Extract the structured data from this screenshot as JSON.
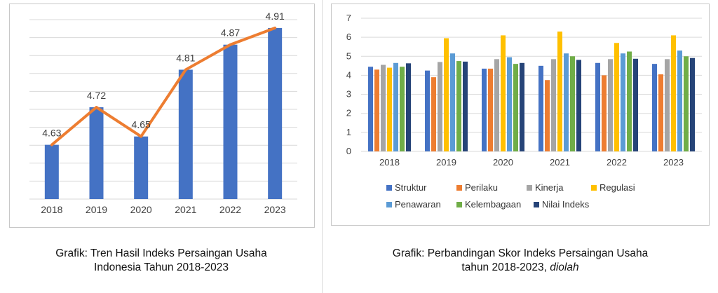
{
  "charts": {
    "left": {
      "caption_line1": "Grafik: Tren Hasil Indeks Persaingan Usaha",
      "caption_line2": "Indonesia Tahun 2018-2023"
    },
    "right": {
      "caption_line1": "Grafik: Perbandingan Skor Indeks Persaingan Usaha",
      "caption_line2": "tahun 2018-2023,",
      "caption_italic": "diolah"
    }
  },
  "colors": {
    "bar_blue": "#4472c4",
    "line_orange": "#ed7d31",
    "gridline": "#d9d9d9",
    "struktur": "#4472c4",
    "perilaku": "#ed7d31",
    "kinerja": "#a5a5a5",
    "regulasi": "#ffc000",
    "penawaran": "#5b9bd5",
    "kelembagaan": "#70ad47",
    "nilai_indeks": "#264478"
  },
  "chart_data": [
    {
      "type": "bar",
      "title": "Tren Hasil Indeks Persaingan Usaha Indonesia Tahun 2018-2023",
      "categories": [
        "2018",
        "2019",
        "2020",
        "2021",
        "2022",
        "2023"
      ],
      "values": [
        4.63,
        4.72,
        4.65,
        4.81,
        4.87,
        4.91
      ],
      "data_labels": [
        "4.63",
        "4.72",
        "4.65",
        "4.81",
        "4.87",
        "4.91"
      ],
      "overlay_line": true,
      "ylim": [
        4.5,
        4.93
      ],
      "grid": true,
      "xlabel": "",
      "ylabel": ""
    },
    {
      "type": "bar",
      "title": "Perbandingan Skor Indeks Persaingan Usaha tahun 2018-2023, diolah",
      "categories": [
        "2018",
        "2019",
        "2020",
        "2021",
        "2022",
        "2023"
      ],
      "yticks": [
        "0",
        "1",
        "2",
        "3",
        "4",
        "5",
        "6",
        "7"
      ],
      "ylim": [
        0,
        7
      ],
      "grid": true,
      "legend_position": "bottom",
      "series": [
        {
          "name": "Struktur",
          "color_key": "struktur",
          "values": [
            4.45,
            4.25,
            4.35,
            4.5,
            4.65,
            4.6
          ]
        },
        {
          "name": "Perilaku",
          "color_key": "perilaku",
          "values": [
            4.3,
            3.9,
            4.35,
            3.75,
            4.0,
            4.05
          ]
        },
        {
          "name": "Kinerja",
          "color_key": "kinerja",
          "values": [
            4.55,
            4.7,
            4.85,
            4.85,
            4.85,
            4.85
          ]
        },
        {
          "name": "Regulasi",
          "color_key": "regulasi",
          "values": [
            4.4,
            5.95,
            6.1,
            6.3,
            5.7,
            6.1
          ]
        },
        {
          "name": "Penawaran",
          "color_key": "penawaran",
          "values": [
            4.65,
            5.15,
            4.95,
            5.15,
            5.15,
            5.3
          ]
        },
        {
          "name": "Kelembagaan",
          "color_key": "kelembagaan",
          "values": [
            4.45,
            4.75,
            4.6,
            5.0,
            5.25,
            5.0
          ]
        },
        {
          "name": "Nilai Indeks",
          "color_key": "nilai_indeks",
          "values": [
            4.63,
            4.72,
            4.65,
            4.81,
            4.87,
            4.91
          ]
        }
      ]
    }
  ]
}
